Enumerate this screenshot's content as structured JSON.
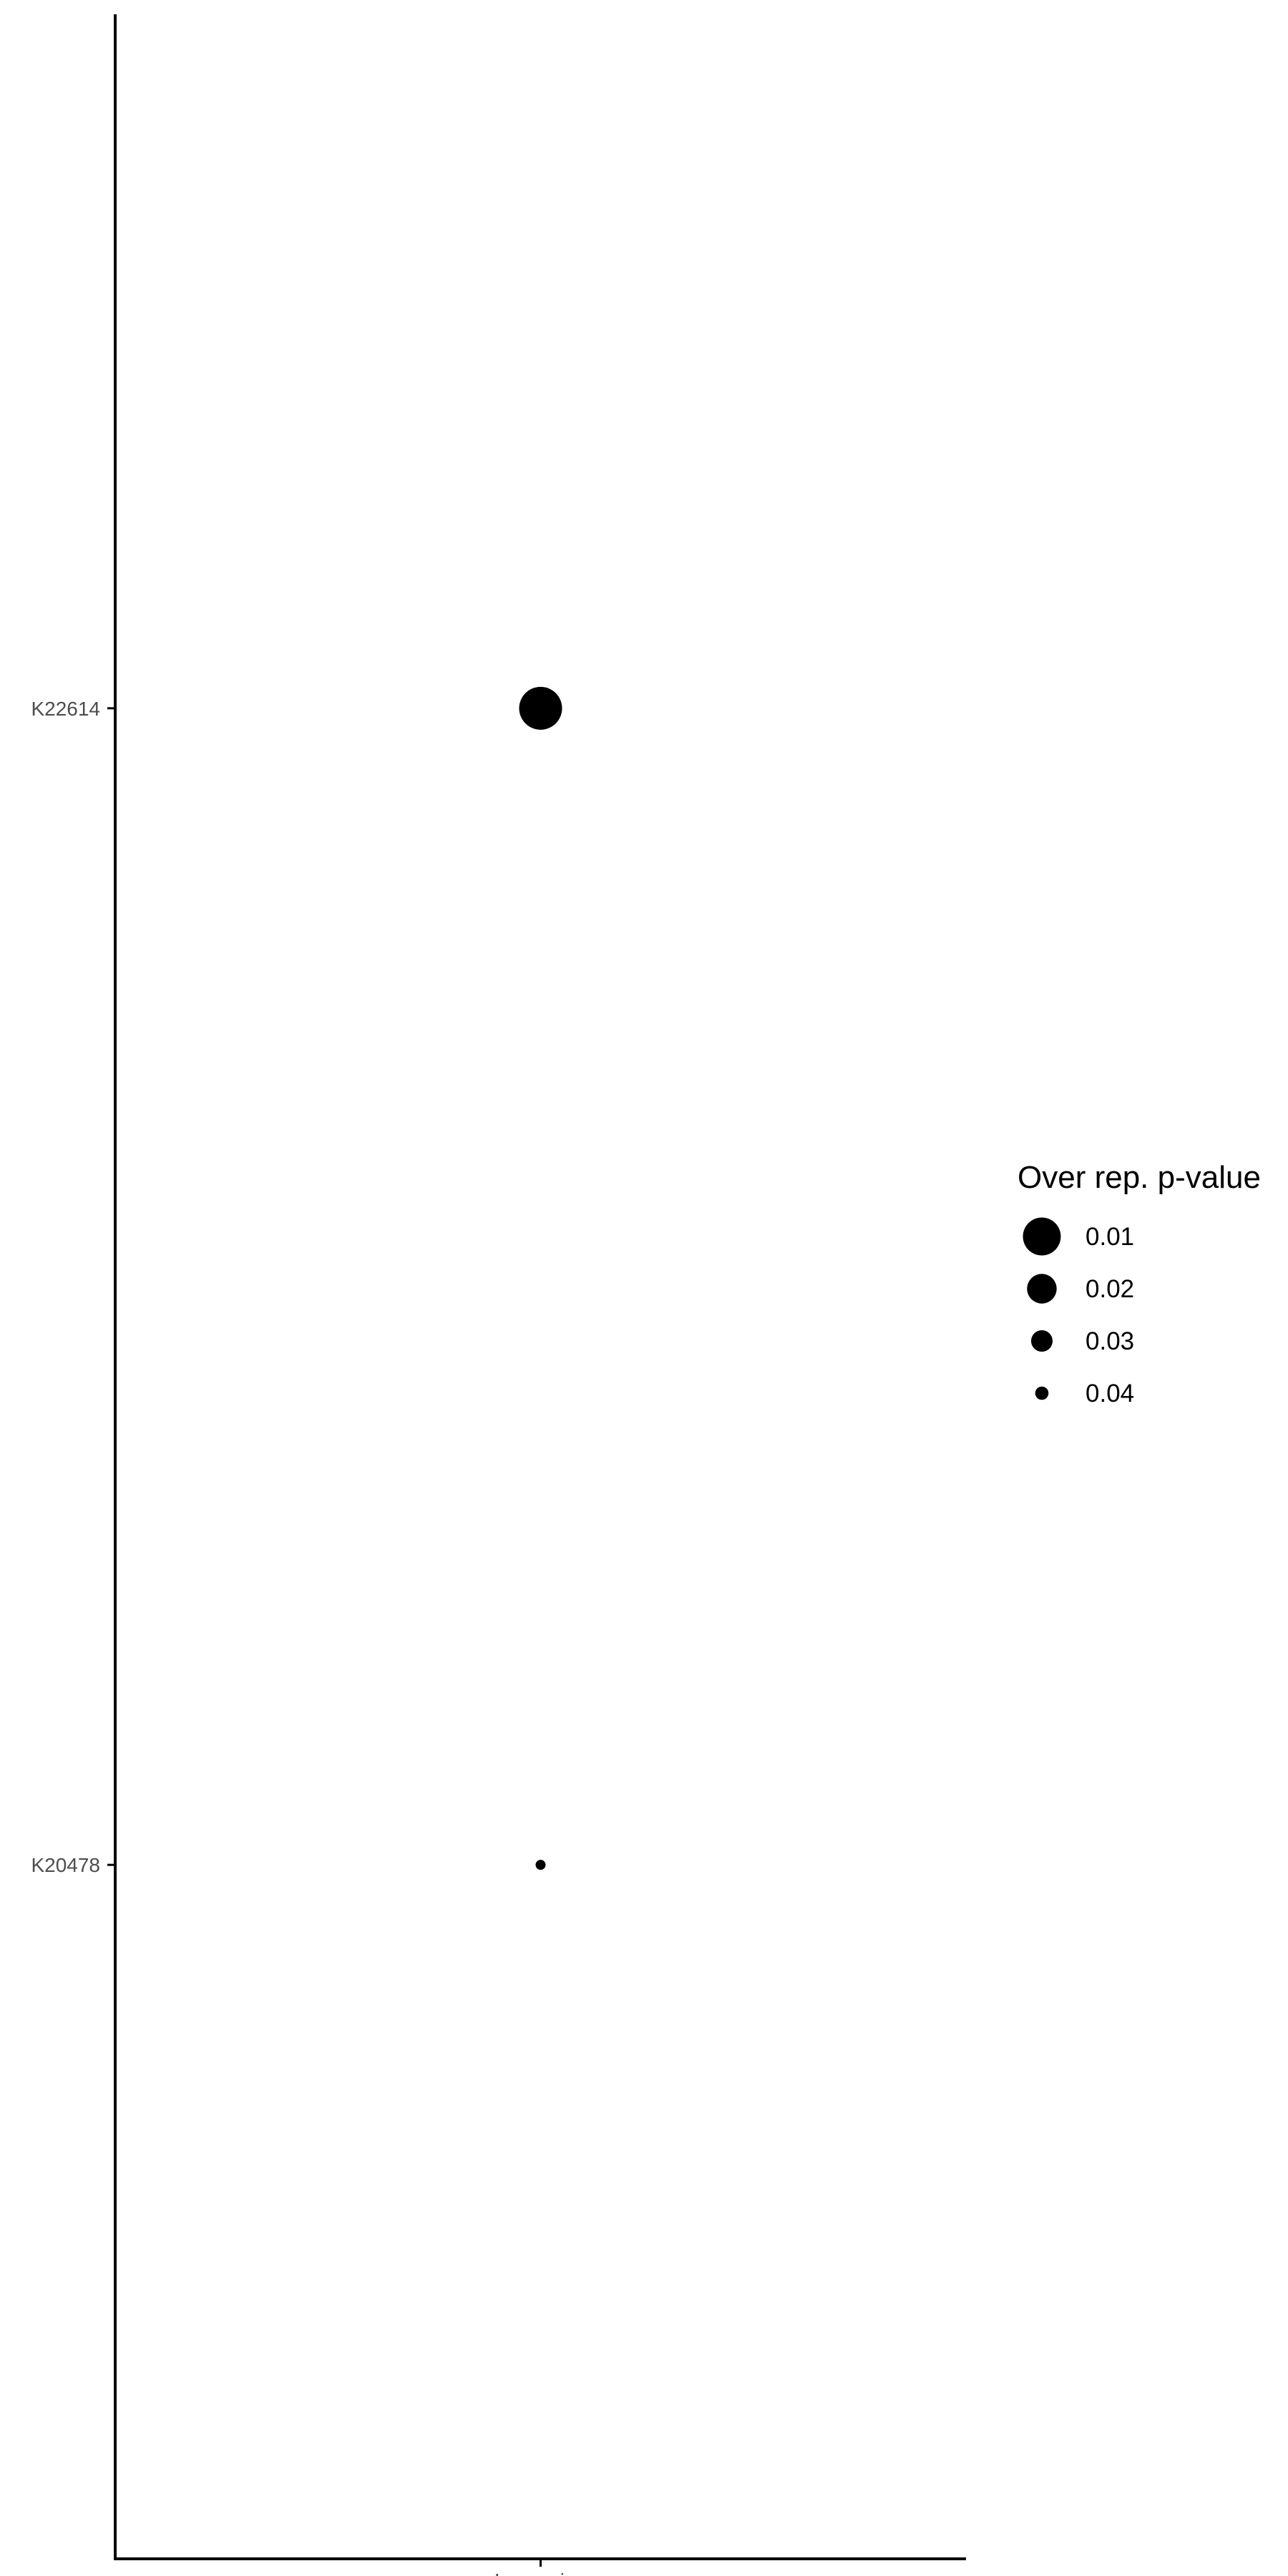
{
  "chart_data": {
    "type": "scatter",
    "x_categories": [
      "Increasing"
    ],
    "y_categories": [
      "K20478",
      "K22614"
    ],
    "points": [
      {
        "x": "Increasing",
        "y": "K22614",
        "p_value": 0.008
      },
      {
        "x": "Increasing",
        "y": "K20478",
        "p_value": 0.045
      }
    ],
    "size_encoding": "Over rep. p-value",
    "legend": {
      "title": "Over rep. p-value",
      "placement": "right",
      "entries": [
        {
          "label": "0.01",
          "value": 0.01
        },
        {
          "label": "0.02",
          "value": 0.02
        },
        {
          "label": "0.03",
          "value": 0.03
        },
        {
          "label": "0.04",
          "value": 0.04
        }
      ]
    },
    "size_range": [
      0.008,
      0.045
    ],
    "point_color": "#000000",
    "grid": false
  }
}
